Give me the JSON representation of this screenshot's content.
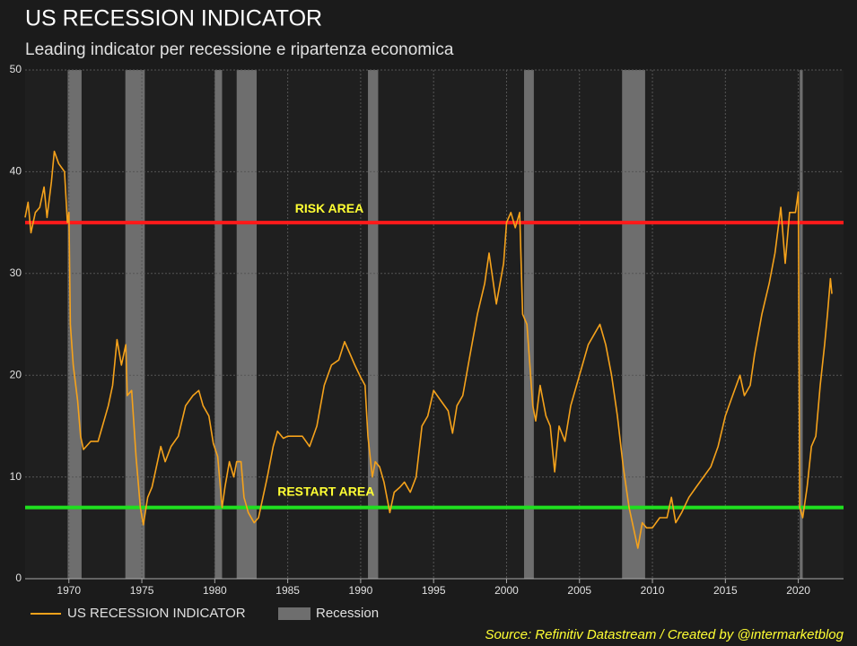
{
  "chart_data": {
    "type": "line",
    "title": "US RECESSION INDICATOR",
    "subtitle": "Leading indicator per recessione e ripartenza economica",
    "source": "Source: Refinitiv Datastream / Created by @intermarketblog",
    "xlim": [
      1967,
      2023.1
    ],
    "ylim": [
      0,
      50
    ],
    "xticks": [
      1970,
      1975,
      1980,
      1985,
      1990,
      1995,
      2000,
      2005,
      2010,
      2015,
      2020
    ],
    "yticks": [
      0,
      10,
      20,
      30,
      40,
      50
    ],
    "grid": true,
    "legend": "bottom-left",
    "series": [
      {
        "name": "US RECESSION INDICATOR",
        "color": "#f5a21b",
        "x": [
          1967.0,
          1967.2,
          1967.4,
          1967.7,
          1968.0,
          1968.3,
          1968.5,
          1968.8,
          1969.0,
          1969.3,
          1969.7,
          1969.9,
          1970.0,
          1970.1,
          1970.3,
          1970.6,
          1970.8,
          1971.0,
          1971.5,
          1972.0,
          1972.3,
          1972.7,
          1973.0,
          1973.3,
          1973.6,
          1973.9,
          1974.0,
          1974.3,
          1974.6,
          1974.9,
          1975.1,
          1975.4,
          1975.7,
          1976.0,
          1976.3,
          1976.6,
          1977.0,
          1977.5,
          1978.0,
          1978.5,
          1978.9,
          1979.2,
          1979.6,
          1979.9,
          1980.2,
          1980.5,
          1980.7,
          1981.0,
          1981.3,
          1981.5,
          1981.8,
          1982.0,
          1982.3,
          1982.7,
          1983.0,
          1983.3,
          1983.6,
          1984.0,
          1984.3,
          1984.7,
          1985.0,
          1985.5,
          1986.0,
          1986.5,
          1987.0,
          1987.5,
          1988.0,
          1988.5,
          1988.9,
          1989.3,
          1989.6,
          1990.0,
          1990.3,
          1990.5,
          1990.8,
          1991.0,
          1991.3,
          1991.6,
          1992.0,
          1992.3,
          1992.7,
          1993.0,
          1993.4,
          1993.8,
          1994.2,
          1994.6,
          1995.0,
          1995.5,
          1996.0,
          1996.3,
          1996.6,
          1997.0,
          1997.5,
          1998.0,
          1998.5,
          1998.8,
          1999.3,
          1999.8,
          2000.0,
          2000.3,
          2000.6,
          2000.9,
          2001.1,
          2001.4,
          2001.8,
          2002.0,
          2002.3,
          2002.7,
          2003.0,
          2003.3,
          2003.6,
          2004.0,
          2004.4,
          2004.8,
          2005.2,
          2005.6,
          2006.0,
          2006.4,
          2006.8,
          2007.2,
          2007.6,
          2008.0,
          2008.4,
          2008.7,
          2009.0,
          2009.3,
          2009.6,
          2010.0,
          2010.5,
          2011.0,
          2011.3,
          2011.6,
          2012.0,
          2012.5,
          2013.0,
          2013.5,
          2014.0,
          2014.5,
          2015.0,
          2015.5,
          2016.0,
          2016.3,
          2016.7,
          2017.0,
          2017.5,
          2018.0,
          2018.4,
          2018.8,
          2019.1,
          2019.4,
          2019.8,
          2020.0,
          2020.1,
          2020.3,
          2020.6,
          2020.9,
          2021.2,
          2021.5,
          2021.8,
          2022.0,
          2022.2,
          2022.3
        ],
        "values": [
          35.5,
          37,
          34,
          36,
          36.5,
          38.5,
          35.5,
          39,
          42,
          40.8,
          40,
          35,
          36,
          25,
          21,
          17.5,
          14,
          12.7,
          13.5,
          13.5,
          15,
          17,
          19,
          23.5,
          21,
          23,
          18,
          18.5,
          12,
          7,
          5.3,
          8,
          9,
          11,
          13,
          11.5,
          13,
          14,
          17,
          18,
          18.5,
          17,
          16,
          13.3,
          12,
          7,
          9,
          11.5,
          10,
          11.5,
          11.5,
          8,
          6.5,
          5.5,
          6,
          8,
          10,
          13,
          14.5,
          13.8,
          14,
          14,
          14,
          13,
          15,
          19,
          21,
          21.5,
          23.3,
          22,
          21,
          19.8,
          19,
          14,
          10,
          11.5,
          11,
          9.5,
          6.5,
          8.5,
          9,
          9.5,
          8.5,
          10,
          15,
          16,
          18.5,
          17.5,
          16.5,
          14.3,
          17,
          18,
          22,
          26,
          29,
          32,
          27,
          31,
          35,
          36,
          34.5,
          36,
          26,
          25,
          17,
          15.5,
          19,
          16,
          15,
          10.5,
          15,
          13.5,
          17,
          19,
          21,
          23,
          24,
          25,
          23,
          20,
          16,
          11,
          7,
          5,
          3,
          5.5,
          5,
          5,
          6,
          6,
          8,
          5.5,
          6.5,
          8,
          9,
          10,
          11,
          13,
          16,
          18,
          20,
          18,
          19,
          22,
          26,
          29,
          32,
          36.5,
          31,
          36,
          36,
          38,
          7,
          6,
          9,
          13,
          14,
          19,
          23,
          26,
          29.5,
          28
        ]
      }
    ],
    "bands": {
      "name": "Recession",
      "color": "#6e6e6e",
      "ranges": [
        [
          1969.92,
          1970.87
        ],
        [
          1973.87,
          1975.2
        ],
        [
          1980.0,
          1980.5
        ],
        [
          1981.5,
          1982.87
        ],
        [
          1990.5,
          1991.2
        ],
        [
          2001.2,
          2001.87
        ],
        [
          2007.92,
          2009.5
        ],
        [
          2020.1,
          2020.3
        ]
      ]
    },
    "reference_lines": [
      {
        "label": "RISK AREA",
        "value": 35,
        "color": "#ff1a1a"
      },
      {
        "label": "RESTART AREA",
        "value": 7,
        "color": "#1fe01f"
      }
    ]
  }
}
